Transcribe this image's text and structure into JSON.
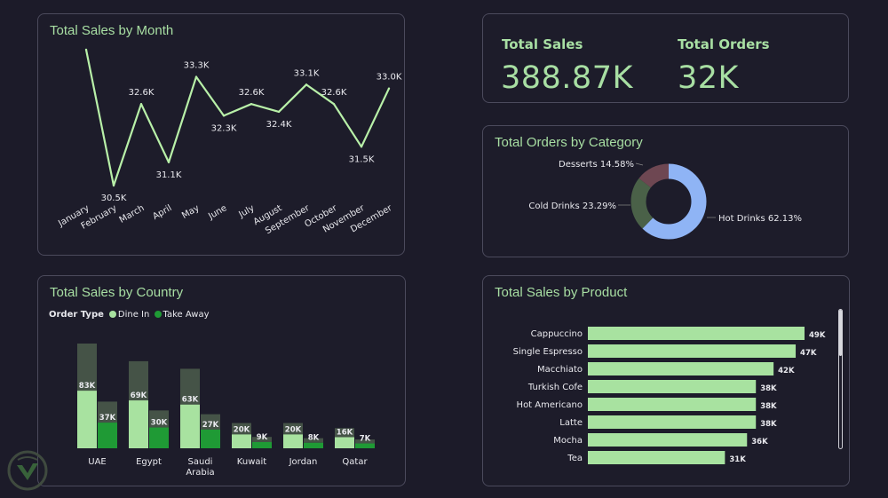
{
  "colors": {
    "accent": "#a8dfa3",
    "dine_in": "#a8e2a0",
    "take_away": "#1f9a35",
    "bar_bg": "#4a5a4a",
    "hot_drinks": "#8fb4f5",
    "cold_drinks": "#4a6148",
    "desserts": "#6e4752"
  },
  "kpis": {
    "sales_label": "Total Sales",
    "sales_value": "388.87K",
    "orders_label": "Total Orders",
    "orders_value": "32K"
  },
  "legend": {
    "title": "Order Type",
    "dine_in": "Dine In",
    "take_away": "Take Away"
  },
  "chart_data": [
    {
      "type": "line",
      "title": "Total Sales by Month",
      "categories": [
        "January",
        "February",
        "March",
        "April",
        "May",
        "June",
        "July",
        "August",
        "September",
        "October",
        "November",
        "December"
      ],
      "values": [
        34.0,
        30.5,
        32.6,
        31.1,
        33.3,
        32.3,
        32.6,
        32.4,
        33.1,
        32.6,
        31.5,
        33.0
      ],
      "labels": [
        "",
        "30.5K",
        "32.6K",
        "31.1K",
        "33.3K",
        "32.3K",
        "32.6K",
        "32.4K",
        "33.1K",
        "32.6K",
        "31.5K",
        "33.0K"
      ],
      "color": "#b8f0a8"
    },
    {
      "type": "pie",
      "title": "Total Orders by Category",
      "slices": [
        {
          "name": "Hot Drinks",
          "value": 62.13,
          "label": "Hot Drinks 62.13%"
        },
        {
          "name": "Cold Drinks",
          "value": 23.29,
          "label": "Cold Drinks 23.29%"
        },
        {
          "name": "Desserts",
          "value": 14.58,
          "label": "Desserts 14.58%"
        }
      ]
    },
    {
      "type": "bar",
      "title": "Total Sales by Country",
      "categories": [
        "UAE",
        "Egypt",
        "Saudi\nArabia",
        "Kuwait",
        "Jordan",
        "Qatar"
      ],
      "series": [
        {
          "name": "Dine In",
          "values": [
            83,
            69,
            63,
            20,
            20,
            16
          ]
        },
        {
          "name": "Take Away",
          "values": [
            37,
            30,
            27,
            9,
            8,
            7
          ]
        }
      ],
      "labels_dine_in": [
        "83K",
        "69K",
        "63K",
        "20K",
        "20K",
        "16K"
      ],
      "labels_take_away": [
        "37K",
        "30K",
        "27K",
        "9K",
        "8K",
        "7K"
      ],
      "ylim": [
        0,
        83
      ]
    },
    {
      "type": "bar",
      "title": "Total Sales by Product",
      "orientation": "horizontal",
      "categories": [
        "Cappuccino",
        "Single Espresso",
        "Macchiato",
        "Turkish Cofe",
        "Hot Americano",
        "Latte",
        "Mocha",
        "Tea"
      ],
      "values": [
        49,
        47,
        42,
        38,
        38,
        38,
        36,
        31
      ],
      "labels": [
        "49K",
        "47K",
        "42K",
        "38K",
        "38K",
        "38K",
        "36K",
        "31K"
      ],
      "xlim": [
        0,
        49
      ]
    }
  ]
}
